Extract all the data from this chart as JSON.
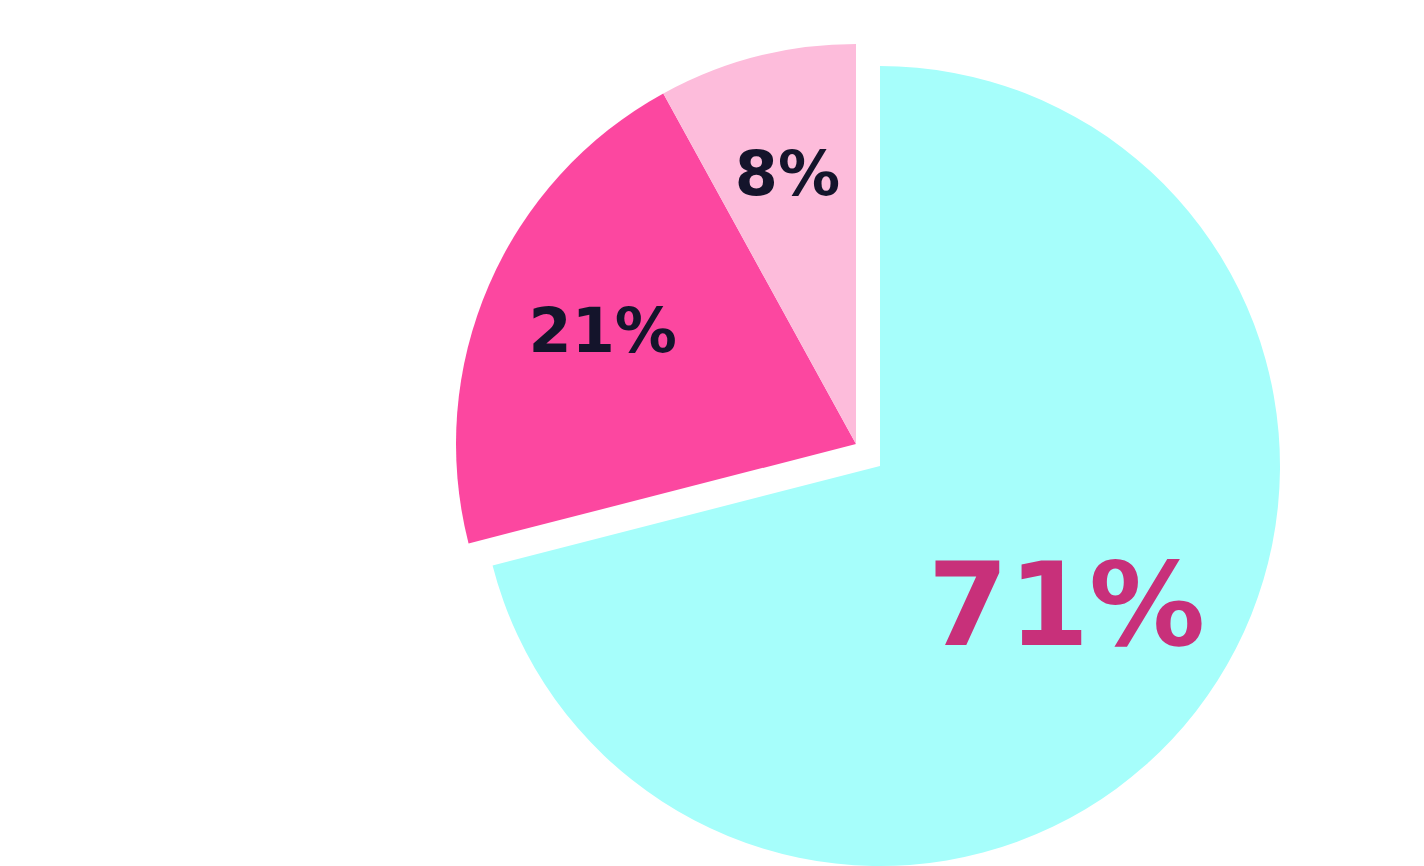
{
  "chart_data": {
    "type": "pie",
    "categories": [
      null,
      null,
      null
    ],
    "values": [
      71,
      21,
      8
    ],
    "colors": [
      "#a6fefb",
      "#fc47a0",
      "#fdbcdb"
    ],
    "value_labels": [
      "71%",
      "21%",
      "8%"
    ]
  }
}
